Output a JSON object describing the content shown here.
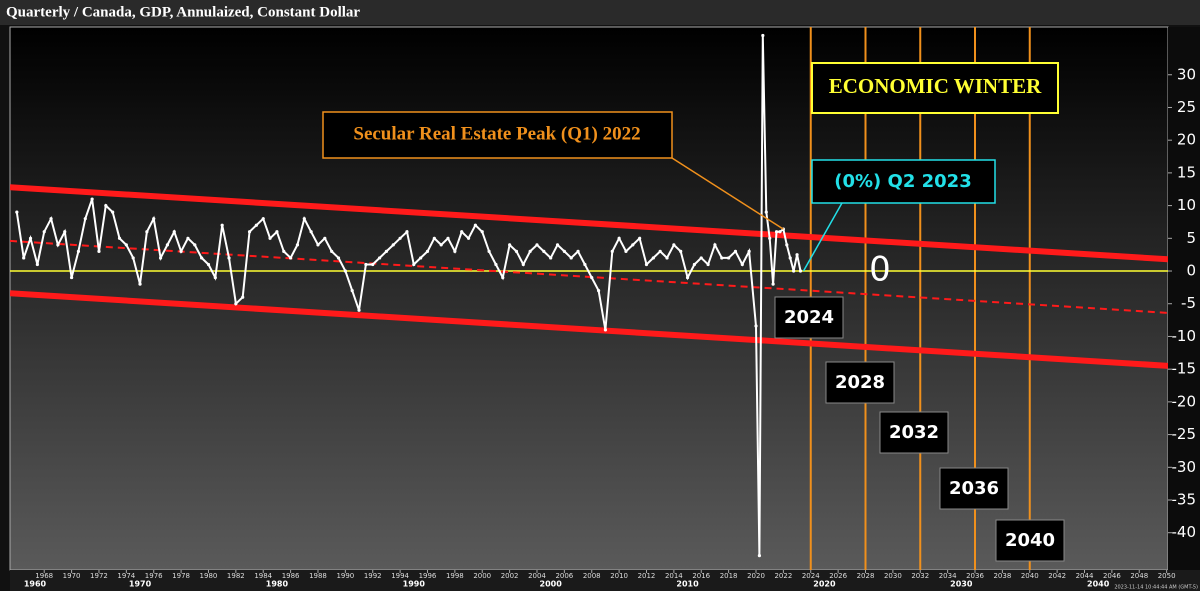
{
  "chart_data": {
    "type": "line",
    "title": "Quarterly / Canada, GDP, Annulaized, Constant Dollar",
    "timestamp": "2023-11-14 10:44:44 AM (GMT-5)",
    "x": [
      1966,
      1966.5,
      1967,
      1967.5,
      1968,
      1968.5,
      1969,
      1969.5,
      1970,
      1970.5,
      1971,
      1971.5,
      1972,
      1972.5,
      1973,
      1973.5,
      1974,
      1974.5,
      1975,
      1975.5,
      1976,
      1976.5,
      1977,
      1977.5,
      1978,
      1978.5,
      1979,
      1979.5,
      1980,
      1980.5,
      1981,
      1981.5,
      1982,
      1982.5,
      1983,
      1983.5,
      1984,
      1984.5,
      1985,
      1985.5,
      1986,
      1986.5,
      1987,
      1987.5,
      1988,
      1988.5,
      1989,
      1989.5,
      1990,
      1990.5,
      1991,
      1991.5,
      1992,
      1992.5,
      1993,
      1993.5,
      1994,
      1994.5,
      1995,
      1995.5,
      1996,
      1996.5,
      1997,
      1997.5,
      1998,
      1998.5,
      1999,
      1999.5,
      2000,
      2000.5,
      2001,
      2001.5,
      2002,
      2002.5,
      2003,
      2003.5,
      2004,
      2004.5,
      2005,
      2005.5,
      2006,
      2006.5,
      2007,
      2007.5,
      2008,
      2008.5,
      2009,
      2009.5,
      2010,
      2010.5,
      2011,
      2011.5,
      2012,
      2012.5,
      2013,
      2013.5,
      2014,
      2014.5,
      2015,
      2015.5,
      2016,
      2016.5,
      2017,
      2017.5,
      2018,
      2018.5,
      2019,
      2019.5,
      2020,
      2020.25,
      2020.5,
      2020.75,
      2021,
      2021.25,
      2021.5,
      2021.75,
      2022,
      2022.25,
      2022.5,
      2022.75,
      2023,
      2023.25
    ],
    "series": [
      {
        "color": "#ffffff",
        "values": [
          9,
          2,
          5,
          1,
          6,
          8,
          4,
          6,
          -1,
          3,
          8,
          11,
          3,
          10,
          9,
          5,
          4,
          2,
          -2,
          6,
          8,
          2,
          4,
          6,
          3,
          5,
          4,
          2,
          1,
          -1,
          7,
          2,
          -5,
          -4,
          6,
          7,
          8,
          5,
          6,
          3,
          2,
          4,
          8,
          6,
          4,
          5,
          3,
          2,
          0,
          -3,
          -6,
          1,
          1,
          2,
          3,
          4,
          5,
          6,
          1,
          2,
          3,
          5,
          4,
          5,
          3,
          6,
          5,
          7,
          6,
          3,
          1,
          -1,
          4,
          3,
          1,
          3,
          4,
          3,
          2,
          4,
          3,
          2,
          3,
          1,
          -1,
          -3,
          -9,
          3,
          5,
          3,
          4,
          5,
          1,
          2,
          3,
          2,
          4,
          3,
          -1,
          1,
          2,
          1,
          4,
          2,
          2,
          3,
          1,
          3,
          -8.4,
          -43.5,
          36,
          9,
          5,
          -2,
          6,
          6,
          6.4,
          4,
          2,
          0,
          2.5,
          0
        ]
      }
    ],
    "xlim": [
      1965.5,
      2050.1
    ],
    "ylim": [
      -45.7,
      37.3
    ],
    "xticks": [
      1968,
      1970,
      1972,
      1974,
      1976,
      1978,
      1980,
      1982,
      1984,
      1986,
      1988,
      1990,
      1992,
      1994,
      1996,
      1998,
      2000,
      2002,
      2004,
      2006,
      2008,
      2010,
      2012,
      2014,
      2016,
      2018,
      2020,
      2022,
      2024,
      2026,
      2028,
      2030,
      2032,
      2034,
      2036,
      2038,
      2040,
      2042,
      2044,
      2046,
      2048,
      2050
    ],
    "decade_ticks": [
      {
        "value": 1965,
        "label": "1960"
      },
      {
        "value": 1975,
        "label": "1970"
      },
      {
        "value": 1985,
        "label": "1980"
      },
      {
        "value": 1995,
        "label": "1990"
      },
      {
        "value": 2005,
        "label": "2000"
      },
      {
        "value": 2015,
        "label": "2010"
      },
      {
        "value": 2025,
        "label": "2020"
      },
      {
        "value": 2035,
        "label": "2030"
      },
      {
        "value": 2045,
        "label": "2040"
      }
    ],
    "yticks": [
      30,
      25,
      20,
      15,
      10,
      5,
      0,
      -5,
      -10,
      -15,
      -20,
      -25,
      -30,
      -35,
      -40
    ],
    "zero_line": {
      "value": 0,
      "color": "#ffff33"
    },
    "channel": {
      "color": "#ff1a1a",
      "upper": {
        "x": [
          1965.5,
          2050.1
        ],
        "y": [
          12.8,
          1.8
        ]
      },
      "middle": {
        "x": [
          1965.5,
          2050.1
        ],
        "y": [
          4.6,
          -6.4
        ]
      },
      "lower": {
        "x": [
          1965.5,
          2050.1
        ],
        "y": [
          -3.4,
          -14.5
        ]
      }
    },
    "forecast_years": {
      "color": "#f0901c",
      "values": [
        2024,
        2028,
        2032,
        2036,
        2040
      ]
    },
    "annotations": {
      "winter": "ECONOMIC WINTER",
      "peak": "Secular Real Estate Peak (Q1) 2022",
      "latest": "(0%) Q2 2023"
    }
  }
}
